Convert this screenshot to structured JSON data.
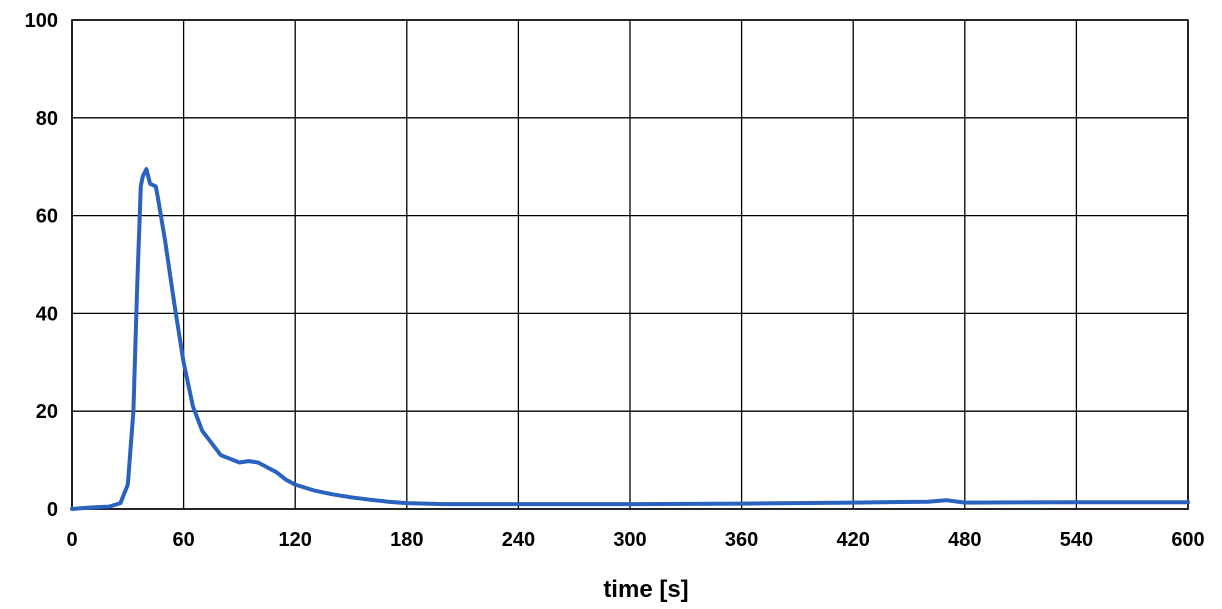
{
  "chart_data": {
    "type": "line",
    "title": "",
    "xlabel": "time [s]",
    "ylabel": "",
    "xlim": [
      0,
      600
    ],
    "ylim": [
      0,
      100
    ],
    "xticks": [
      0,
      60,
      120,
      180,
      240,
      300,
      360,
      420,
      480,
      540,
      600
    ],
    "yticks": [
      0,
      20,
      40,
      60,
      80,
      100
    ],
    "grid": true,
    "legend": "none",
    "series_color": "#2a62c0",
    "series": [
      {
        "x": [
          0,
          10,
          20,
          26,
          30,
          33,
          35,
          37,
          38,
          40,
          41,
          42,
          45,
          46,
          50,
          55,
          60,
          65,
          70,
          80,
          90,
          95,
          100,
          105,
          110,
          115,
          120,
          130,
          140,
          150,
          160,
          170,
          180,
          200,
          240,
          300,
          360,
          420,
          460,
          470,
          480,
          540,
          600
        ],
        "y": [
          0,
          0.3,
          0.5,
          1.2,
          5,
          20,
          45,
          66,
          68,
          69.5,
          68,
          66.5,
          66,
          64,
          55,
          42,
          30,
          21,
          16,
          11,
          9.5,
          9.8,
          9.5,
          8.5,
          7.5,
          6,
          5,
          3.8,
          3,
          2.4,
          1.9,
          1.5,
          1.2,
          1,
          1,
          1,
          1.1,
          1.3,
          1.5,
          1.8,
          1.3,
          1.4,
          1.4
        ]
      }
    ]
  }
}
